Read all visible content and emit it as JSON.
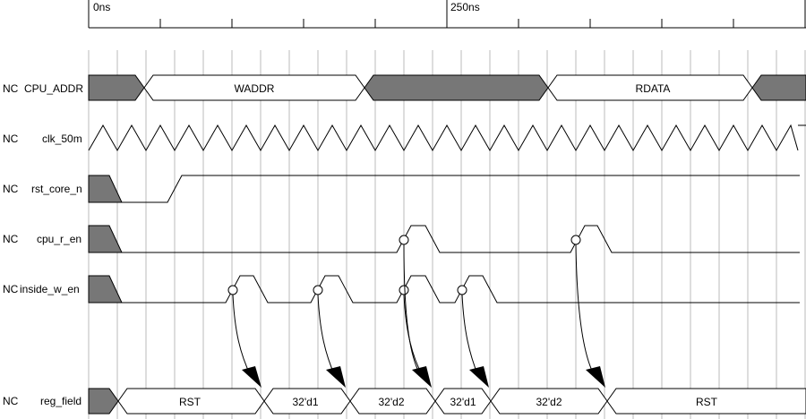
{
  "timeline": {
    "labels": [
      {
        "text": "0ns",
        "time_ns": 0
      },
      {
        "text": "250ns",
        "time_ns": 250
      }
    ]
  },
  "signals": [
    {
      "id": "cpu_addr",
      "prefix": "NC",
      "name": "CPU_ADDR",
      "kind": "bus",
      "segments": [
        {
          "value": "",
          "state": "x"
        },
        {
          "value": "WADDR",
          "state": "valid"
        },
        {
          "value": "",
          "state": "x"
        },
        {
          "value": "RDATA",
          "state": "valid"
        },
        {
          "value": "",
          "state": "x"
        }
      ]
    },
    {
      "id": "clk_50m",
      "prefix": "NC",
      "name": "clk_50m",
      "kind": "clock"
    },
    {
      "id": "rst_core_n",
      "prefix": "NC",
      "name": "rst_core_n",
      "kind": "bit"
    },
    {
      "id": "cpu_r_en",
      "prefix": "NC",
      "name": "cpu_r_en",
      "kind": "bit"
    },
    {
      "id": "inside_w_en",
      "prefix": "NC",
      "name": "inside_w_en",
      "kind": "bit"
    },
    {
      "id": "reg_field",
      "prefix": "NC",
      "name": "reg_field",
      "kind": "bus",
      "segments": [
        {
          "value": "",
          "state": "x"
        },
        {
          "value": "RST",
          "state": "valid"
        },
        {
          "value": "32'd1",
          "state": "valid"
        },
        {
          "value": "32'd2",
          "state": "valid"
        },
        {
          "value": "32'd1",
          "state": "valid"
        },
        {
          "value": "32'd2",
          "state": "valid"
        },
        {
          "value": "RST",
          "state": "valid"
        }
      ]
    }
  ],
  "colors": {
    "undefined_fill": "#777777",
    "grid": "#bbbbbb",
    "line": "#000000"
  }
}
